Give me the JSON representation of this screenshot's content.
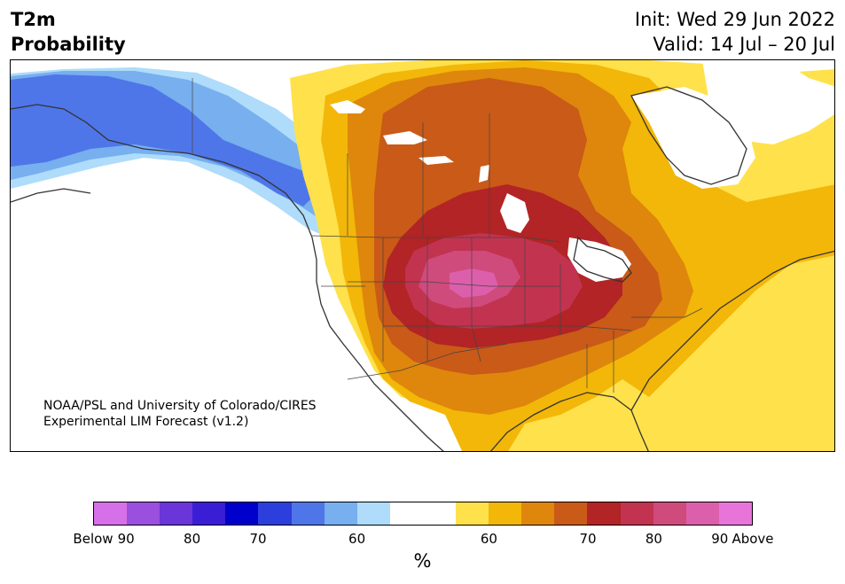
{
  "header": {
    "title_line1": "T2m",
    "title_line2": "Probability",
    "init_text": "Init: Wed 29 Jun 2022",
    "valid_text": "Valid: 14 Jul – 20 Jul"
  },
  "credit": {
    "line1": "NOAA/PSL and University of Colorado/CIRES",
    "line2": "Experimental LIM Forecast (v1.2)"
  },
  "colorbar": {
    "units": "%",
    "colors_below": [
      "#d670e8",
      "#9b4fdf",
      "#6a35d9",
      "#3a1ed6",
      "#0000cc",
      "#2c3edb",
      "#4f76e8",
      "#77afef",
      "#aedcfa"
    ],
    "neutral": "#ffffff",
    "colors_above": [
      "#ffe14b",
      "#f2b708",
      "#de870c",
      "#c95a18",
      "#b22425",
      "#c23350",
      "#cf4b7c",
      "#dc5fac",
      "#e874da"
    ],
    "tick_labels": [
      "Below",
      "90",
      "80",
      "70",
      "60",
      "60",
      "70",
      "80",
      "90",
      "Above"
    ]
  },
  "map": {
    "region": "North America",
    "legend_colors": {
      "above_60": "#ffe14b",
      "above_65": "#f2b708",
      "above_70": "#de870c",
      "above_75": "#c95a18",
      "above_80": "#b22425",
      "above_85": "#c23350",
      "above_90": "#cf4b7c",
      "below_60": "#aedcfa",
      "below_65": "#77afef",
      "below_70": "#4f76e8"
    }
  }
}
